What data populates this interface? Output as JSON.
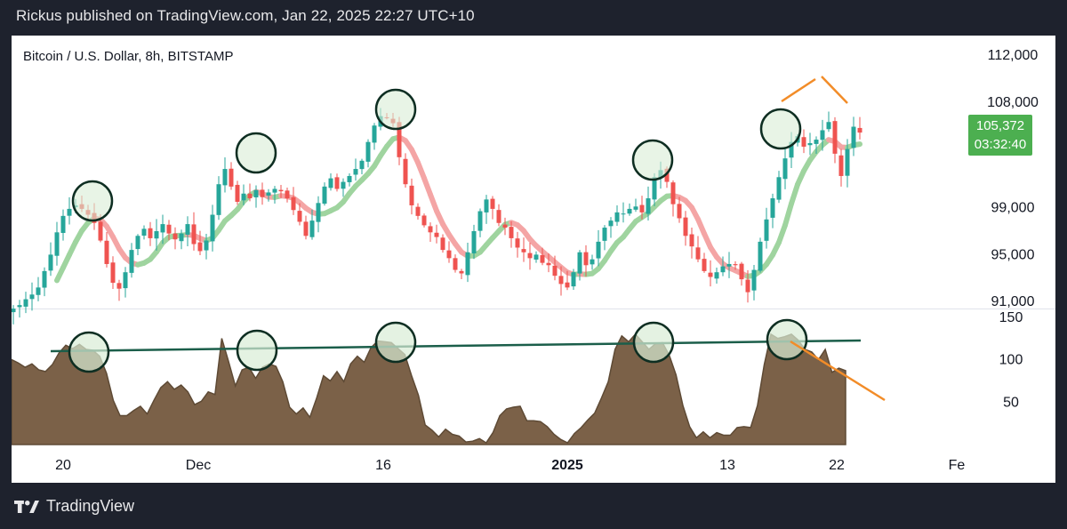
{
  "header": {
    "published": "Rickus published on TradingView.com, Jan 22, 2025 22:27 UTC+10"
  },
  "chart_title": "Bitcoin / U.S. Dollar, 8h, BITSTAMP",
  "price_badge": {
    "price": "105,372",
    "countdown": "03:32:40"
  },
  "footer": {
    "brand": "TradingView"
  },
  "colors": {
    "up": "#26a69a",
    "down": "#ef5350",
    "ma_up": "#9fd49f",
    "ma_down": "#f4a5a5",
    "osc_fill": "#7b6148",
    "osc_line": "#5e4a35",
    "trendline": "#1b5e4a",
    "circle_fill": "#d8ecd6",
    "circle_stroke": "#0e2e22",
    "orange": "#f28c28",
    "badge": "#4caf50"
  },
  "chart_data": [
    {
      "type": "candlestick",
      "title": "Bitcoin / U.S. Dollar, 8h, BITSTAMP",
      "y_ticks": [
        "112,000",
        "108,000",
        "99,000",
        "95,000",
        "91,000"
      ],
      "ylim": [
        89800,
        113200
      ],
      "x_ticks": [
        "20",
        "Dec",
        "16",
        "2025",
        "13",
        "22",
        "Fe"
      ],
      "close_series": [
        90400,
        90700,
        91200,
        91600,
        92200,
        93600,
        95000,
        96900,
        98300,
        98900,
        99200,
        98900,
        98400,
        97700,
        96200,
        94200,
        92600,
        92100,
        93500,
        95400,
        96600,
        97200,
        96400,
        97000,
        97600,
        96800,
        96300,
        96800,
        97600,
        95900,
        95300,
        96200,
        98400,
        101000,
        102300,
        100800,
        99500,
        100200,
        99800,
        100500,
        99900,
        100300,
        100600,
        100400,
        99800,
        98800,
        97800,
        96600,
        97900,
        99400,
        100800,
        101500,
        100600,
        101200,
        101700,
        102300,
        103000,
        104600,
        106000,
        106800,
        106700,
        106200,
        103300,
        101000,
        99200,
        98300,
        97500,
        96900,
        96500,
        95400,
        94700,
        93700,
        93400,
        95200,
        97000,
        98700,
        99700,
        98900,
        97700,
        97300,
        96400,
        95600,
        95200,
        94700,
        95000,
        94300,
        94100,
        93200,
        92500,
        92200,
        93500,
        95200,
        94100,
        94600,
        96100,
        97300,
        97900,
        98600,
        98500,
        98900,
        99100,
        98600,
        99800,
        101600,
        102200,
        101200,
        99300,
        98100,
        96600,
        95700,
        94600,
        93600,
        93100,
        93500,
        94000,
        94200,
        94100,
        92900,
        91800,
        93700,
        96100,
        98000,
        99800,
        101600,
        103200,
        104600,
        105100,
        104200,
        104500,
        104800,
        105600,
        106300,
        103600,
        101700,
        104000,
        105900,
        105400
      ],
      "annotations": [
        "circled swing highs",
        "diverging orange marks near Jan 22 high"
      ]
    },
    {
      "type": "area",
      "title": "",
      "y_ticks": [
        "150",
        "100",
        "50"
      ],
      "ylim": [
        0,
        160
      ],
      "values": [
        100,
        96,
        91,
        95,
        88,
        86,
        94,
        108,
        117,
        113,
        118,
        112,
        111,
        104,
        84,
        52,
        34,
        34,
        40,
        45,
        36,
        52,
        67,
        74,
        65,
        70,
        62,
        47,
        51,
        62,
        59,
        125,
        98,
        69,
        88,
        91,
        78,
        91,
        95,
        92,
        74,
        44,
        36,
        43,
        32,
        55,
        81,
        75,
        86,
        74,
        95,
        104,
        97,
        114,
        122,
        121,
        120,
        113,
        106,
        81,
        58,
        23,
        17,
        9,
        18,
        12,
        10,
        3,
        4,
        7,
        2,
        14,
        34,
        42,
        44,
        45,
        28,
        28,
        27,
        21,
        12,
        6,
        2,
        13,
        20,
        29,
        37,
        55,
        74,
        112,
        128,
        121,
        130,
        121,
        112,
        119,
        120,
        105,
        82,
        46,
        21,
        8,
        15,
        8,
        14,
        11,
        11,
        20,
        21,
        20,
        46,
        94,
        130,
        125,
        127,
        130,
        123,
        112,
        109,
        100,
        112,
        85,
        90,
        87
      ],
      "trendline": "horizontal line across peaks near 113",
      "annotations": [
        "circled oscillator peaks",
        "orange descending line from latest peak"
      ]
    }
  ]
}
